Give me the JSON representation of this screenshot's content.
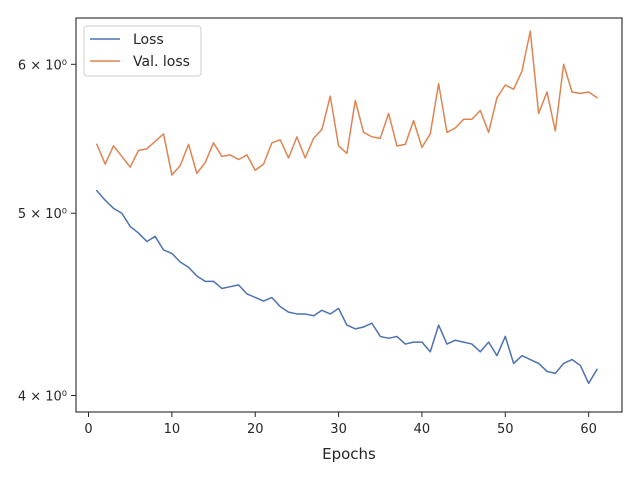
{
  "chart_data": {
    "type": "line",
    "title": "",
    "xlabel": "Epochs",
    "ylabel": "",
    "yscale": "log",
    "xlim": [
      -1.5,
      64
    ],
    "ylim": [
      3.92,
      6.35
    ],
    "grid": false,
    "legend_position": "top-left",
    "x_ticks": [
      0,
      10,
      20,
      30,
      40,
      50,
      60
    ],
    "x_tick_labels": [
      "0",
      "10",
      "20",
      "30",
      "40",
      "50",
      "60"
    ],
    "y_ticks": [
      4,
      5,
      6
    ],
    "y_tick_labels": [
      "4 × 10⁰",
      "5 × 10⁰",
      "6 × 10⁰"
    ],
    "x": [
      1,
      2,
      3,
      4,
      5,
      6,
      7,
      8,
      9,
      10,
      11,
      12,
      13,
      14,
      15,
      16,
      17,
      18,
      19,
      20,
      21,
      22,
      23,
      24,
      25,
      26,
      27,
      28,
      29,
      30,
      31,
      32,
      33,
      34,
      35,
      36,
      37,
      38,
      39,
      40,
      41,
      42,
      43,
      44,
      45,
      46,
      47,
      48,
      49,
      50,
      51,
      52,
      53,
      54,
      55,
      56,
      57,
      58,
      59,
      60,
      61
    ],
    "series": [
      {
        "name": "Loss",
        "color": "#4c72b0",
        "values": [
          5.14,
          5.08,
          5.03,
          5.0,
          4.92,
          4.88,
          4.83,
          4.86,
          4.78,
          4.76,
          4.71,
          4.68,
          4.63,
          4.6,
          4.6,
          4.56,
          4.57,
          4.58,
          4.53,
          4.51,
          4.49,
          4.51,
          4.46,
          4.43,
          4.42,
          4.42,
          4.41,
          4.44,
          4.42,
          4.45,
          4.36,
          4.34,
          4.35,
          4.37,
          4.3,
          4.29,
          4.3,
          4.26,
          4.27,
          4.27,
          4.22,
          4.36,
          4.26,
          4.28,
          4.27,
          4.26,
          4.22,
          4.27,
          4.2,
          4.3,
          4.16,
          4.2,
          4.18,
          4.16,
          4.12,
          4.11,
          4.16,
          4.18,
          4.15,
          4.06,
          4.13
        ]
      },
      {
        "name": "Val. loss",
        "color": "#dd8452",
        "values": [
          5.44,
          5.31,
          5.43,
          5.36,
          5.29,
          5.4,
          5.41,
          5.46,
          5.51,
          5.24,
          5.3,
          5.44,
          5.25,
          5.32,
          5.45,
          5.36,
          5.37,
          5.34,
          5.37,
          5.27,
          5.31,
          5.45,
          5.47,
          5.35,
          5.49,
          5.35,
          5.48,
          5.54,
          5.77,
          5.43,
          5.38,
          5.74,
          5.52,
          5.49,
          5.48,
          5.65,
          5.43,
          5.44,
          5.6,
          5.42,
          5.51,
          5.86,
          5.52,
          5.55,
          5.61,
          5.61,
          5.67,
          5.52,
          5.76,
          5.85,
          5.82,
          5.95,
          6.25,
          5.65,
          5.8,
          5.53,
          6.0,
          5.8,
          5.79,
          5.8,
          5.76
        ]
      }
    ]
  }
}
